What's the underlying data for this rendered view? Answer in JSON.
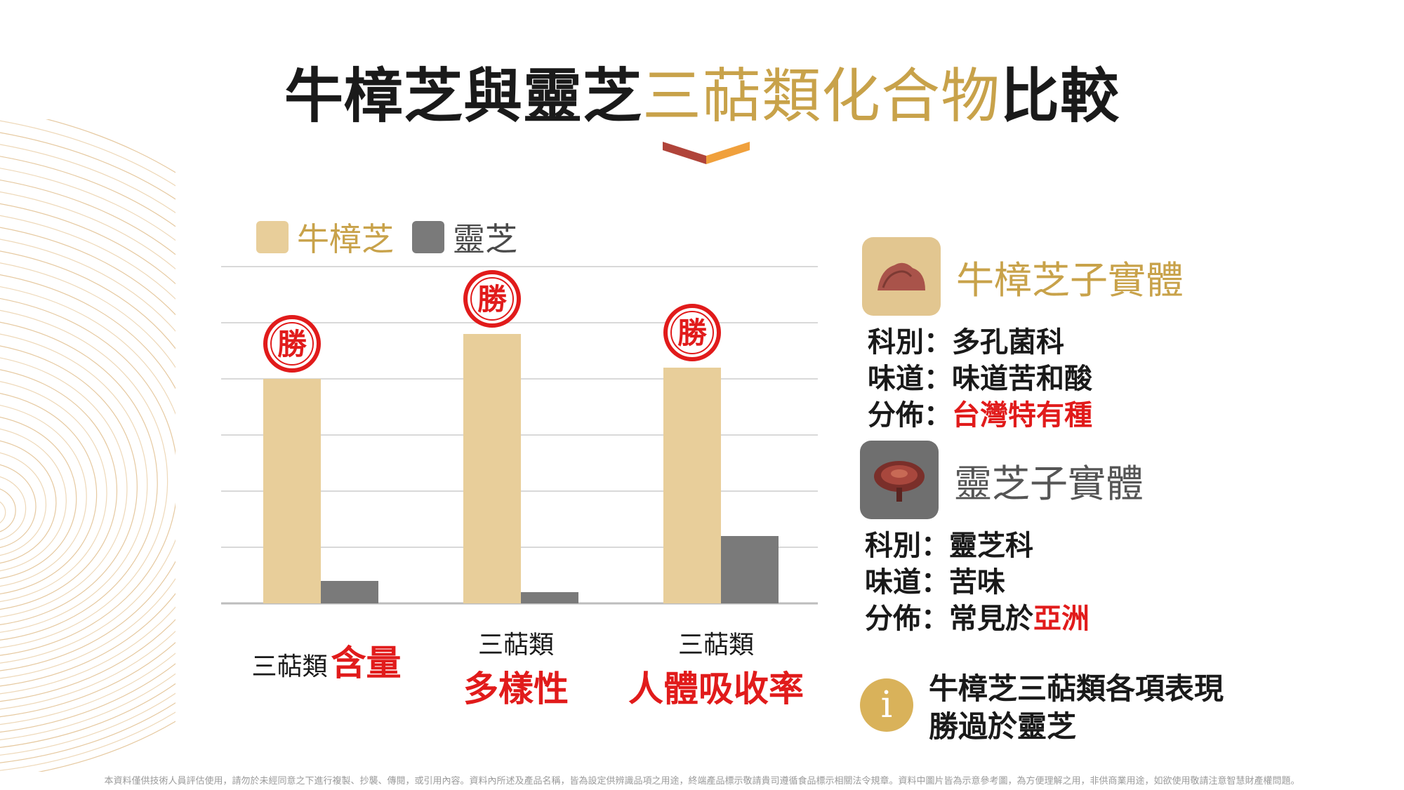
{
  "title": {
    "part1": "牛樟芝與靈芝",
    "part2": "三萜類化合物",
    "part3": "比較"
  },
  "colors": {
    "accent_gold": "#c8a24a",
    "series1": "#e8ce9a",
    "series2": "#7a7a7a",
    "win_red": "#e11b1b",
    "text": "#1a1a1a"
  },
  "legend": [
    {
      "label": "牛樟芝",
      "color": "#e8ce9a",
      "text_color": "#c8a24a"
    },
    {
      "label": "靈芝",
      "color": "#7a7a7a",
      "text_color": "#4a4a4a"
    }
  ],
  "chart_data": {
    "type": "bar",
    "categories": [
      "三萜類 含量",
      "三萜類 多樣性",
      "三萜類 人體吸收率"
    ],
    "series": [
      {
        "name": "牛樟芝",
        "values": [
          4.0,
          4.8,
          4.2
        ]
      },
      {
        "name": "靈芝",
        "values": [
          0.4,
          0.2,
          1.2
        ]
      }
    ],
    "ylim": [
      0,
      6
    ],
    "grid": true,
    "legend_position": "top-left",
    "annotations": [
      "勝",
      "勝",
      "勝"
    ]
  },
  "categories_display": [
    {
      "small": "三萜類",
      "big": "含量"
    },
    {
      "small": "三萜類",
      "big": "多樣性"
    },
    {
      "small": "三萜類",
      "big": "人體吸收率"
    }
  ],
  "species": [
    {
      "name": "牛樟芝子實體",
      "icon": "antrodia-mushroom-icon",
      "lines": [
        {
          "label": "科別",
          "sep": "：",
          "value": "多孔菌科",
          "highlight": ""
        },
        {
          "label": "味道",
          "sep": "：",
          "value": "味道苦和酸",
          "highlight": ""
        },
        {
          "label": "分佈",
          "sep": "：",
          "value": "",
          "highlight": "台灣特有種"
        }
      ]
    },
    {
      "name": "靈芝子實體",
      "icon": "reishi-mushroom-icon",
      "lines": [
        {
          "label": "科別",
          "sep": "：",
          "value": "靈芝科",
          "highlight": ""
        },
        {
          "label": "味道",
          "sep": "：",
          "value": "苦味",
          "highlight": ""
        },
        {
          "label": "分佈",
          "sep": "：",
          "value": "常見於",
          "highlight": "亞洲"
        }
      ]
    }
  ],
  "note": {
    "icon": "info-icon",
    "symbol": "i",
    "line1": "牛樟芝三萜類各項表現",
    "line2": "勝過於靈芝"
  },
  "footer": "本資料僅供技術人員評估使用，請勿於未經同意之下進行複製、抄襲、傳閱，或引用內容。資料內所述及產品名稱，皆為設定供辨識品項之用途，終端產品標示敬請貴司遵循食品標示相關法令規章。資料中圖片皆為示意參考圖，為方便理解之用，非供商業用途，如欲使用敬請注意智慧財產權問題。"
}
